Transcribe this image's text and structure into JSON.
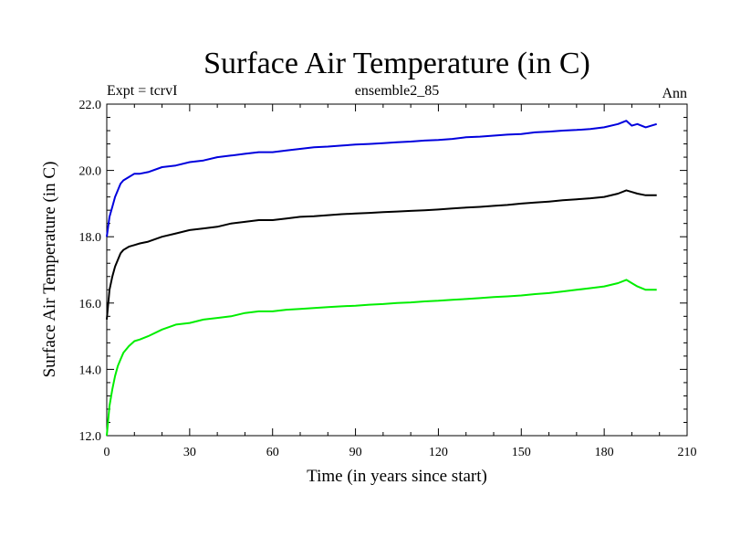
{
  "chart_data": {
    "type": "line",
    "title": "Surface Air Temperature (in C)",
    "subtitle_left": "Expt = tcrvI",
    "subtitle_center": "ensemble2_85",
    "subtitle_right": "Ann",
    "xlabel": "Time (in years since start)",
    "ylabel": "Surface Air Temperature (in C)",
    "xlim": [
      0,
      210
    ],
    "ylim": [
      12.0,
      22.0
    ],
    "xticks": [
      0,
      30,
      60,
      90,
      120,
      150,
      180,
      210
    ],
    "xtick_labels": [
      "0",
      "30",
      "60",
      "90",
      "120",
      "150",
      "180",
      "210"
    ],
    "yticks": [
      12.0,
      14.0,
      16.0,
      18.0,
      20.0,
      22.0
    ],
    "ytick_labels": [
      "12.0",
      "14.0",
      "16.0",
      "18.0",
      "20.0",
      "22.0"
    ],
    "x": [
      0,
      1,
      2,
      3,
      4,
      5,
      6,
      8,
      10,
      12,
      15,
      20,
      25,
      30,
      35,
      40,
      45,
      50,
      55,
      60,
      65,
      70,
      75,
      80,
      85,
      90,
      95,
      100,
      105,
      110,
      115,
      120,
      125,
      130,
      135,
      140,
      145,
      150,
      155,
      160,
      165,
      170,
      175,
      180,
      185,
      188,
      190,
      192,
      195,
      199
    ],
    "series": [
      {
        "name": "blue",
        "color": "#0000dd",
        "values": [
          18.0,
          18.6,
          18.9,
          19.2,
          19.4,
          19.6,
          19.7,
          19.8,
          19.9,
          19.9,
          19.95,
          20.1,
          20.15,
          20.25,
          20.3,
          20.4,
          20.45,
          20.5,
          20.55,
          20.55,
          20.6,
          20.65,
          20.7,
          20.72,
          20.75,
          20.78,
          20.8,
          20.82,
          20.85,
          20.87,
          20.9,
          20.92,
          20.95,
          21.0,
          21.02,
          21.05,
          21.08,
          21.1,
          21.15,
          21.17,
          21.2,
          21.22,
          21.25,
          21.3,
          21.4,
          21.5,
          21.35,
          21.4,
          21.3,
          21.4
        ]
      },
      {
        "name": "black",
        "color": "#000000",
        "values": [
          15.5,
          16.4,
          16.8,
          17.1,
          17.3,
          17.5,
          17.6,
          17.7,
          17.75,
          17.8,
          17.85,
          18.0,
          18.1,
          18.2,
          18.25,
          18.3,
          18.4,
          18.45,
          18.5,
          18.5,
          18.55,
          18.6,
          18.62,
          18.65,
          18.68,
          18.7,
          18.72,
          18.74,
          18.76,
          18.78,
          18.8,
          18.82,
          18.85,
          18.88,
          18.9,
          18.93,
          18.96,
          19.0,
          19.03,
          19.06,
          19.1,
          19.13,
          19.16,
          19.2,
          19.3,
          19.4,
          19.35,
          19.3,
          19.25,
          19.25
        ]
      },
      {
        "name": "green",
        "color": "#00ee00",
        "values": [
          12.0,
          12.9,
          13.4,
          13.8,
          14.1,
          14.3,
          14.5,
          14.7,
          14.85,
          14.9,
          15.0,
          15.2,
          15.35,
          15.4,
          15.5,
          15.55,
          15.6,
          15.7,
          15.75,
          15.75,
          15.8,
          15.82,
          15.85,
          15.88,
          15.9,
          15.92,
          15.95,
          15.97,
          16.0,
          16.02,
          16.05,
          16.07,
          16.1,
          16.12,
          16.15,
          16.18,
          16.2,
          16.23,
          16.27,
          16.3,
          16.35,
          16.4,
          16.45,
          16.5,
          16.6,
          16.7,
          16.6,
          16.5,
          16.4,
          16.4
        ]
      }
    ]
  }
}
